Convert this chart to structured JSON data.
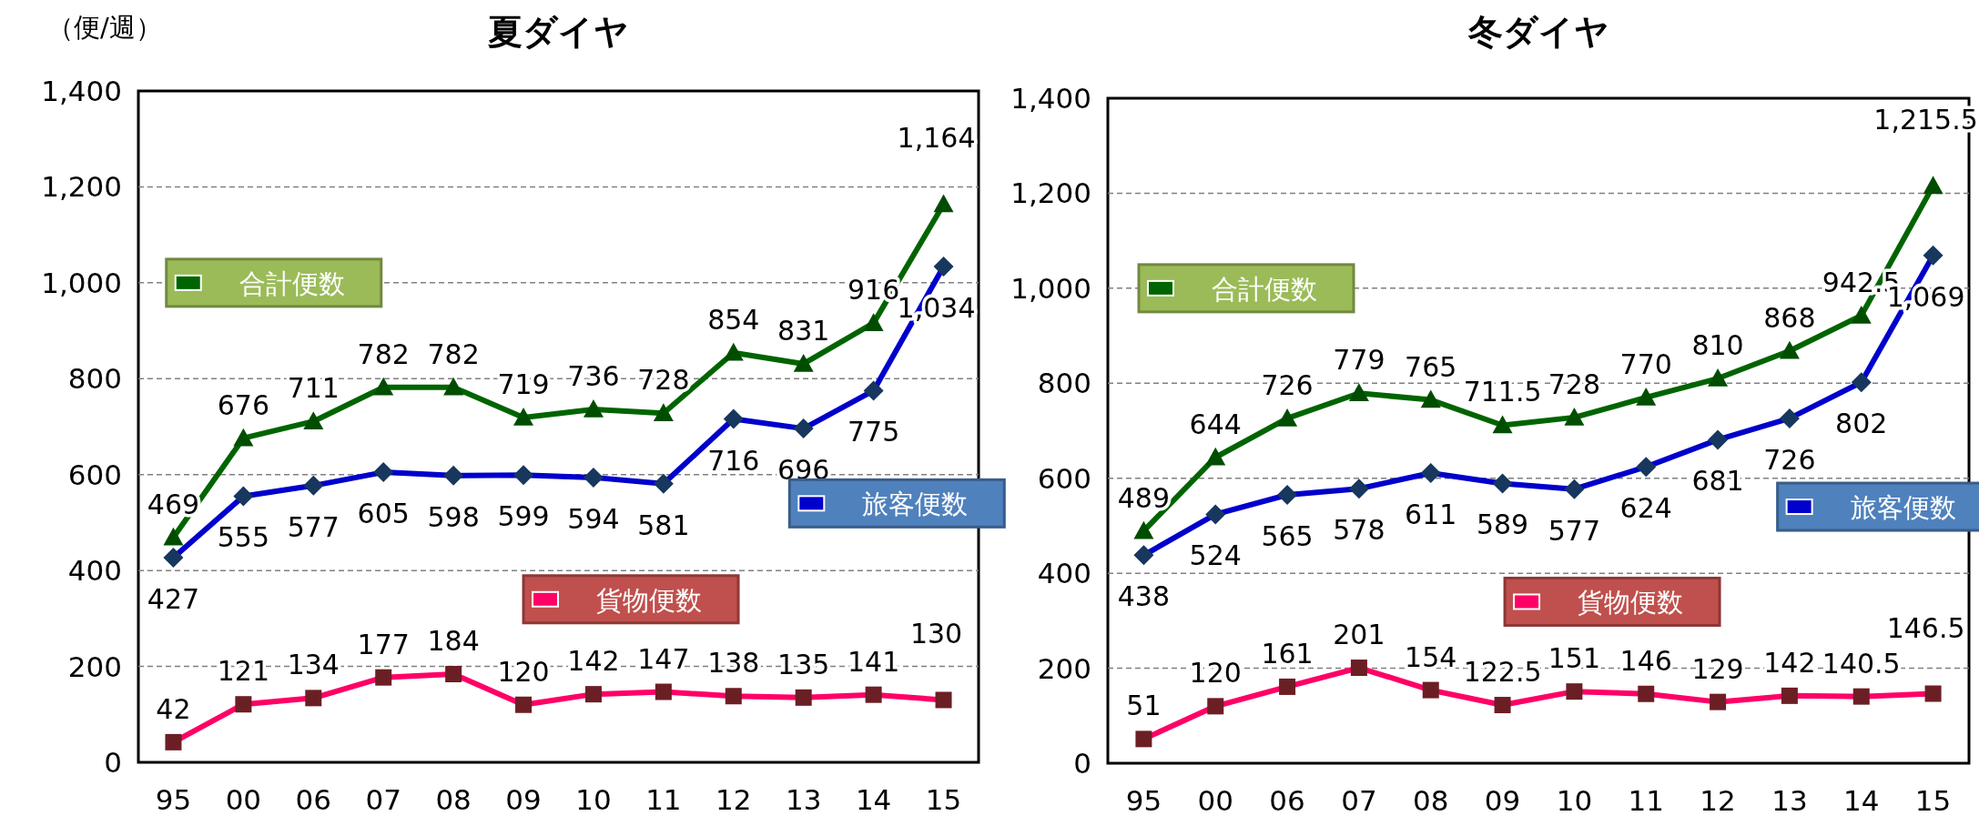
{
  "chart_data": [
    {
      "type": "line",
      "title": "夏ダイヤ",
      "ylabel": "（便/週）",
      "categories": [
        "95",
        "00",
        "06",
        "07",
        "08",
        "09",
        "10",
        "11",
        "12",
        "13",
        "14",
        "15"
      ],
      "ylim": [
        0,
        1400
      ],
      "yticks": [
        0,
        {
          "value": 200,
          "label": "200"
        },
        {
          "value": 400,
          "label": "400"
        },
        {
          "value": 600,
          "label": "600"
        },
        {
          "value": 800,
          "label": "800"
        },
        {
          "value": 1000,
          "label": "1,000"
        },
        {
          "value": 1200,
          "label": "1,200"
        },
        {
          "value": 1400,
          "label": "1,400"
        }
      ],
      "grid": "y",
      "legend": "left",
      "line_style": "solid",
      "series": [
        {
          "name": "合計便数",
          "color": "#006400",
          "marker": "triangle",
          "values": [
            469,
            676,
            711,
            782,
            782,
            719,
            736,
            728,
            854,
            831,
            916,
            1164
          ],
          "value_labels": [
            "469",
            "676",
            "711",
            "782",
            "782",
            "719",
            "736",
            "728",
            "854",
            "831",
            "916",
            "1,164"
          ]
        },
        {
          "name": "旅客便数",
          "color": "#0000cc",
          "marker": "diamond",
          "values": [
            427,
            555,
            577,
            605,
            598,
            599,
            594,
            581,
            716,
            696,
            775,
            1034
          ],
          "value_labels": [
            "427",
            "555",
            "577",
            "605",
            "598",
            "599",
            "594",
            "581",
            "716",
            "696",
            "775",
            "1,034"
          ]
        },
        {
          "name": "貨物便数",
          "color": "#ff0066",
          "marker": "square",
          "values": [
            42,
            121,
            134,
            177,
            184,
            120,
            142,
            147,
            138,
            135,
            141,
            130
          ],
          "value_labels": [
            "42",
            "121",
            "134",
            "177",
            "184",
            "120",
            "142",
            "147",
            "138",
            "135",
            "141",
            "130"
          ]
        }
      ]
    },
    {
      "type": "line",
      "title": "冬ダイヤ",
      "categories": [
        "95",
        "00",
        "06",
        "07",
        "08",
        "09",
        "10",
        "11",
        "12",
        "13",
        "14",
        "15"
      ],
      "ylim": [
        0,
        1400
      ],
      "yticks": [
        0,
        {
          "value": 200,
          "label": "200"
        },
        {
          "value": 400,
          "label": "400"
        },
        {
          "value": 600,
          "label": "600"
        },
        {
          "value": 800,
          "label": "800"
        },
        {
          "value": 1000,
          "label": "1,000"
        },
        {
          "value": 1200,
          "label": "1,200"
        },
        {
          "value": 1400,
          "label": "1,400"
        }
      ],
      "grid": "y",
      "legend": "left",
      "line_style": "solid",
      "series": [
        {
          "name": "合計便数",
          "color": "#006400",
          "marker": "triangle",
          "values": [
            489,
            644,
            726,
            779,
            765,
            711.5,
            728,
            770,
            810,
            868,
            942.5,
            1215.5
          ],
          "value_labels": [
            "489",
            "644",
            "726",
            "779",
            "765",
            "711.5",
            "728",
            "770",
            "810",
            "868",
            "942.5",
            "1,215.5"
          ]
        },
        {
          "name": "旅客便数",
          "color": "#0000cc",
          "marker": "diamond",
          "values": [
            438,
            524,
            565,
            578,
            611,
            589,
            577,
            624,
            681,
            726,
            802,
            1069
          ],
          "value_labels": [
            "438",
            "524",
            "565",
            "578",
            "611",
            "589",
            "577",
            "624",
            "681",
            "726",
            "802",
            "1,069"
          ]
        },
        {
          "name": "貨物便数",
          "color": "#ff0066",
          "marker": "square",
          "values": [
            51,
            120,
            161,
            201,
            154,
            122.5,
            151,
            146,
            129,
            142,
            140.5,
            146.5
          ],
          "value_labels": [
            "51",
            "120",
            "161",
            "201",
            "154",
            "122.5",
            "151",
            "146",
            "129",
            "142",
            "140.5",
            "146.5"
          ]
        }
      ]
    }
  ]
}
